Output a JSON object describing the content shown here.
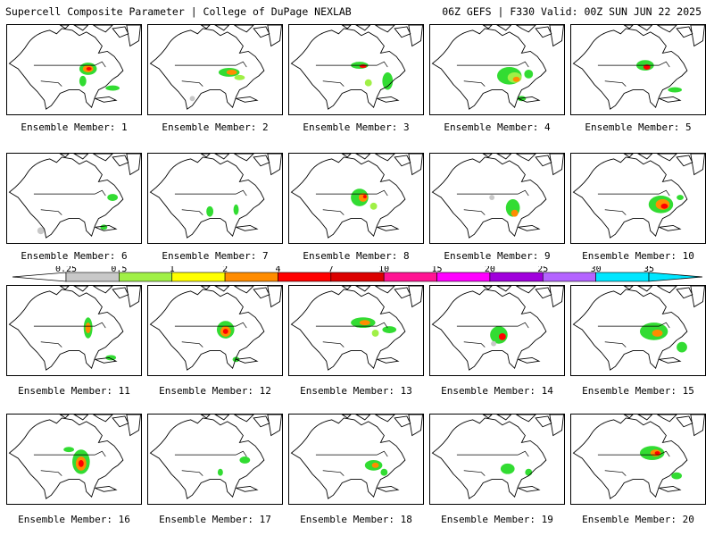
{
  "header": {
    "title_left": "Supercell Composite Parameter | College of DuPage NEXLAB",
    "title_right": "06Z GEFS | F330 Valid: 00Z SUN JUN 22 2025"
  },
  "panels": [
    {
      "label": "Ensemble Member: 1"
    },
    {
      "label": "Ensemble Member: 2"
    },
    {
      "label": "Ensemble Member: 3"
    },
    {
      "label": "Ensemble Member: 4"
    },
    {
      "label": "Ensemble Member: 5"
    },
    {
      "label": "Ensemble Member: 6"
    },
    {
      "label": "Ensemble Member: 7"
    },
    {
      "label": "Ensemble Member: 8"
    },
    {
      "label": "Ensemble Member: 9"
    },
    {
      "label": "Ensemble Member: 10"
    },
    {
      "label": "Ensemble Member: 11"
    },
    {
      "label": "Ensemble Member: 12"
    },
    {
      "label": "Ensemble Member: 13"
    },
    {
      "label": "Ensemble Member: 14"
    },
    {
      "label": "Ensemble Member: 15"
    },
    {
      "label": "Ensemble Member: 16"
    },
    {
      "label": "Ensemble Member: 17"
    },
    {
      "label": "Ensemble Member: 18"
    },
    {
      "label": "Ensemble Member: 19"
    },
    {
      "label": "Ensemble Member: 20"
    }
  ],
  "colorbar": {
    "ticks": [
      "0.25",
      "0.5",
      "1",
      "2",
      "4",
      "7",
      "10",
      "15",
      "20",
      "25",
      "30",
      "35"
    ],
    "colors": [
      "#c8c8c8",
      "#32dc32",
      "#a0f046",
      "#ffff00",
      "#ff8c00",
      "#ff0000",
      "#dc0000",
      "#ff1493",
      "#ff00ff",
      "#a000dc",
      "#b464ff",
      "#00e6ff"
    ]
  }
}
